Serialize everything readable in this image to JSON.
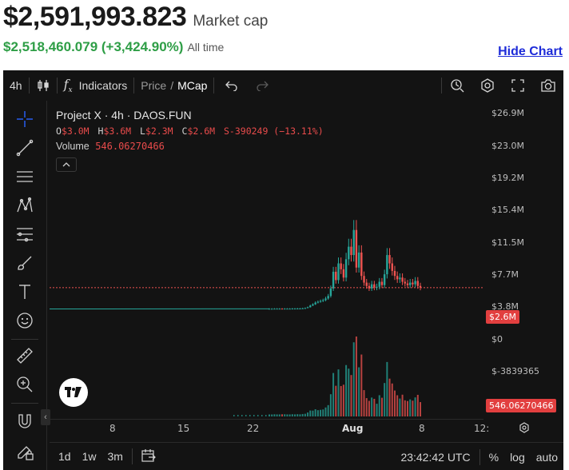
{
  "header": {
    "market_cap_value": "$2,591,993.823",
    "market_cap_label": "Market cap",
    "change_value": "$2,518,460.079 (+3,424.90%)",
    "change_label": "All time",
    "hide_chart_label": "Hide Chart"
  },
  "toolbar": {
    "interval": "4h",
    "candles_icon": "candlestick-icon",
    "fx_icon": "function-icon",
    "indicators_label": "Indicators",
    "price_label": "Price",
    "slash": "/",
    "mcap_label": "MCap",
    "right_icons": [
      "alert-icon",
      "settings-hexagon-icon",
      "fullscreen-icon",
      "camera-icon"
    ]
  },
  "left_tools": [
    "crosshair-icon",
    "trend-line-icon",
    "horizontal-lines-icon",
    "pattern-icon",
    "fib-icon",
    "brush-icon",
    "text-icon",
    "emoji-icon",
    "ruler-icon",
    "zoom-in-icon",
    "magnet-icon",
    "lock-pencil-icon"
  ],
  "legend": {
    "title": "Project X · 4h · DAOS.FUN",
    "o_label": "O",
    "o_value": "$3.0M",
    "h_label": "H",
    "h_value": "$3.6M",
    "l_label": "L",
    "l_value": "$2.3M",
    "c_label": "C",
    "c_value": "$2.6M",
    "change": "S-390249 (−13.11%)",
    "volume_label": "Volume",
    "volume_value": "546.06270466"
  },
  "price_axis": {
    "labels": [
      "$26.9M",
      "$23.0M",
      "$19.2M",
      "$15.4M",
      "$11.5M",
      "$7.7M",
      "$3.8M",
      "$0",
      "$-3839365"
    ],
    "current_price_tag": "$2.6M",
    "volume_tag": "546.06270466"
  },
  "time_axis": {
    "labels": [
      "8",
      "15",
      "22",
      "Aug",
      "8",
      "12:"
    ]
  },
  "bottom_bar": {
    "ranges": [
      "1d",
      "1w",
      "3m"
    ],
    "time": "23:42:42 UTC",
    "percent": "%",
    "log": "log",
    "auto": "auto"
  },
  "colors": {
    "up": "#26a69a",
    "down": "#ef5350",
    "background": "#131313",
    "market_cap_change": "#2e9e46",
    "link": "#1d2bd8"
  },
  "chart_data": {
    "type": "candlestick",
    "title": "Project X · 4h · DAOS.FUN",
    "ylim": [
      -3839365,
      26900000
    ],
    "ticks": [
      "$26.9M",
      "$23.0M",
      "$19.2M",
      "$15.4M",
      "$11.5M",
      "$7.7M",
      "$3.8M",
      "$0",
      "$-3839365"
    ],
    "x_ticks": [
      "8",
      "15",
      "22",
      "Aug",
      "8",
      "12:"
    ],
    "last_close": 2600000,
    "ohlc_last": {
      "open": 3000000,
      "high": 3600000,
      "low": 2300000,
      "close": 2600000
    },
    "close_series_millions": [
      0.07,
      0.07,
      0.08,
      0.08,
      0.08,
      0.07,
      0.08,
      0.08,
      0.08,
      0.09,
      0.09,
      0.1,
      0.1,
      0.12,
      0.15,
      0.25,
      0.45,
      0.6,
      0.8,
      0.9,
      1.0,
      1.1,
      1.3,
      1.6,
      2.5,
      4.5,
      3.5,
      5.5,
      4.8,
      3.8,
      6.0,
      7.5,
      6.5,
      9.5,
      5.0,
      6.8,
      4.0,
      3.2,
      2.8,
      2.5,
      3.0,
      2.6,
      2.7,
      3.3,
      2.9,
      4.2,
      6.5,
      5.5,
      4.6,
      4.0,
      3.6,
      3.8,
      3.3,
      3.1,
      2.9,
      3.2,
      3.0,
      3.4,
      2.8,
      2.6
    ]
  }
}
